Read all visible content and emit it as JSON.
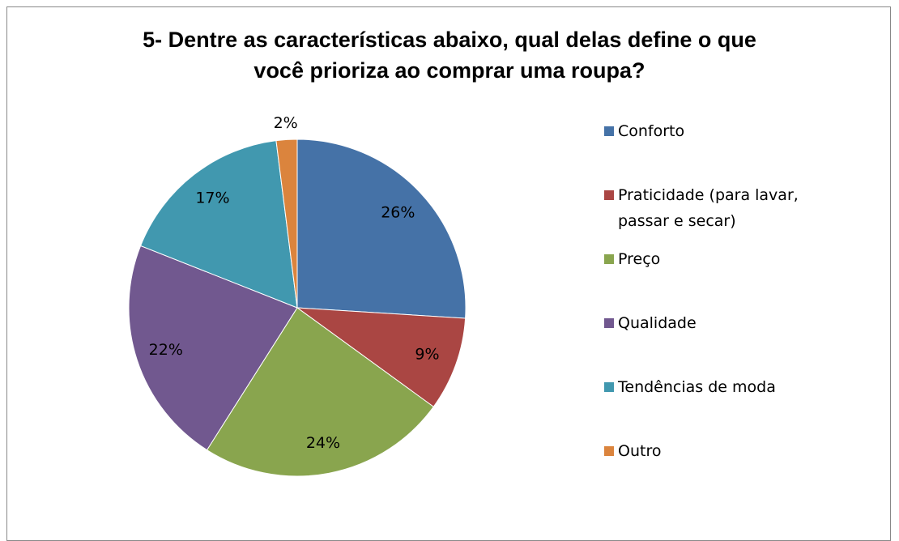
{
  "chart_data": {
    "type": "pie",
    "title": "5- Dentre as características abaixo, qual delas define o que você prioriza ao comprar uma roupa?",
    "categories": [
      "Conforto",
      "Praticidade (para lavar, passar e secar)",
      "Preço",
      "Qualidade",
      "Tendências de moda",
      "Outro"
    ],
    "values": [
      26,
      9,
      24,
      22,
      17,
      2
    ],
    "value_labels": [
      "26%",
      "9%",
      "24%",
      "22%",
      "17%",
      "2%"
    ],
    "colors": [
      "#4572a7",
      "#aa4643",
      "#89a54e",
      "#71588f",
      "#4198af",
      "#db843d"
    ],
    "legend": "right"
  }
}
